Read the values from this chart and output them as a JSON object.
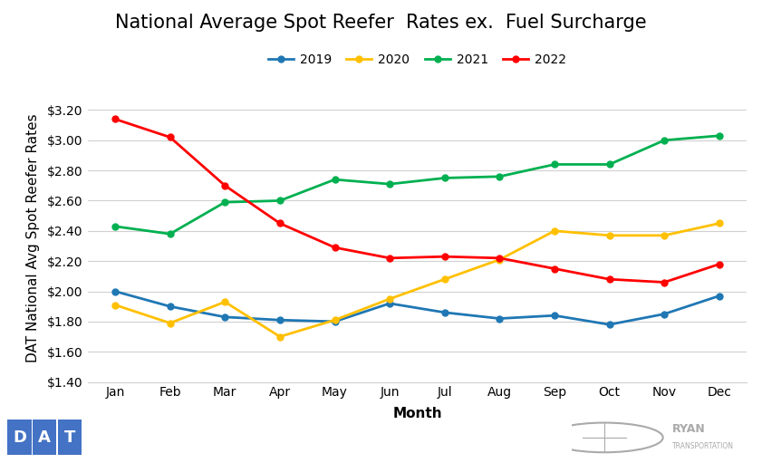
{
  "title": "National Average Spot Reefer  Rates ex.  Fuel Surcharge",
  "xlabel": "Month",
  "ylabel": "DAT National Avg Spot Reefer Rates",
  "months": [
    "Jan",
    "Feb",
    "Mar",
    "Apr",
    "May",
    "Jun",
    "Jul",
    "Aug",
    "Sep",
    "Oct",
    "Nov",
    "Dec"
  ],
  "series": {
    "2019": {
      "values": [
        2.0,
        1.9,
        1.83,
        1.81,
        1.8,
        1.92,
        1.86,
        1.82,
        1.84,
        1.78,
        1.85,
        1.97
      ],
      "color": "#1f77b4",
      "marker": "o"
    },
    "2020": {
      "values": [
        1.91,
        1.79,
        1.93,
        1.7,
        1.81,
        1.95,
        2.08,
        2.21,
        2.4,
        2.37,
        2.37,
        2.45
      ],
      "color": "#ffc000",
      "marker": "o"
    },
    "2021": {
      "values": [
        2.43,
        2.38,
        2.59,
        2.6,
        2.74,
        2.71,
        2.75,
        2.76,
        2.84,
        2.84,
        3.0,
        3.03
      ],
      "color": "#00b050",
      "marker": "o"
    },
    "2022": {
      "values": [
        3.14,
        3.02,
        2.7,
        2.45,
        2.29,
        2.22,
        2.23,
        2.22,
        2.15,
        2.08,
        2.06,
        2.18
      ],
      "color": "#ff0000",
      "marker": "o"
    }
  },
  "ylim": [
    1.4,
    3.3
  ],
  "yticks": [
    1.4,
    1.6,
    1.8,
    2.0,
    2.2,
    2.4,
    2.6,
    2.8,
    3.0,
    3.2
  ],
  "background_color": "#ffffff",
  "grid_color": "#d0d0d0",
  "title_fontsize": 15,
  "axis_label_fontsize": 11,
  "tick_fontsize": 10,
  "legend_fontsize": 10,
  "line_width": 2.0,
  "marker_size": 5,
  "dat_color": "#4472c4",
  "ryan_color": "#aaaaaa"
}
